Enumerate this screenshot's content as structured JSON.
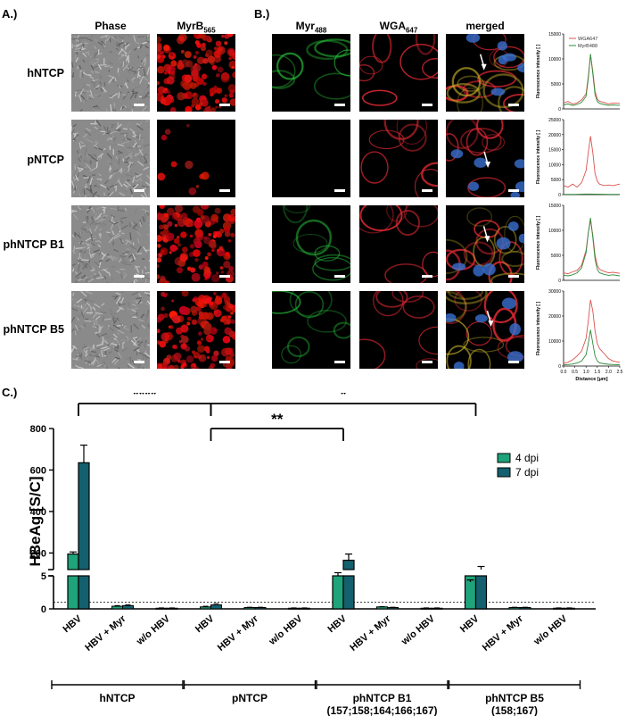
{
  "panel_a": {
    "letter": "A.)",
    "col_phase": "Phase",
    "col_myrb": "MyrB",
    "col_myrb_sub": "565",
    "rows": [
      "hNTCP",
      "pNTCP",
      "phNTCP B1",
      "phNTCP B5"
    ]
  },
  "panel_b": {
    "letter": "B.)",
    "col_myr": "Myr",
    "col_myr_sub": "488",
    "col_wga": "WGA",
    "col_wga_sub": "647",
    "col_merged": "merged",
    "legend_wga": "WGA647",
    "legend_myrb": "MyrB488",
    "profile_ylabel": "Fluorescence intensity [ ]",
    "profile_xlabel": "Distance [µm]",
    "profile_xticks": [
      "0.0",
      "0.5",
      "1.0",
      "1.5",
      "2.0",
      "2.5"
    ],
    "profile_yticks": [
      [
        "0",
        "5000",
        "10000",
        "15000"
      ],
      [
        "0",
        "5000",
        "10000",
        "15000",
        "20000",
        "25000"
      ],
      [
        "0",
        "5000",
        "10000",
        "15000"
      ],
      [
        "0",
        "10000",
        "20000",
        "30000"
      ]
    ]
  },
  "panel_c": {
    "letter": "C.)",
    "ylabel": "HBeAg [S/C]",
    "yticks_top": [
      "800",
      "600",
      "400",
      "200"
    ],
    "yticks_bottom": [
      "5",
      "0"
    ],
    "legend": [
      "4 dpi",
      "7 dpi"
    ],
    "sig_labels": [
      "****",
      "**",
      "*"
    ],
    "group_labels": [
      "hNTCP",
      "pNTCP",
      "phNTCP B1",
      "phNTCP  B5"
    ],
    "group_sublabels": [
      "",
      "",
      "(157;158;164;166;167)",
      "(158;167)"
    ],
    "categories": [
      "HBV",
      "HBV + Myr",
      "w/o HBV"
    ]
  },
  "chart_data": [
    {
      "type": "line",
      "title": "",
      "xlabel": "Distance [µm]",
      "ylabel": "Fluorescence intensity [ ]",
      "xlim": [
        0,
        2.5
      ],
      "ylim": [
        0,
        15000
      ],
      "series": [
        {
          "name": "WGA647",
          "color": "#d9534f",
          "x": [
            0,
            0.2,
            0.4,
            0.6,
            0.8,
            1.0,
            1.1,
            1.2,
            1.3,
            1.4,
            1.5,
            1.6,
            1.8,
            2.0,
            2.2,
            2.5
          ],
          "y": [
            1200,
            1500,
            1000,
            1200,
            1800,
            3000,
            6500,
            10800,
            7500,
            3500,
            2000,
            1500,
            1300,
            1000,
            1200,
            1100
          ]
        },
        {
          "name": "MyrB488",
          "color": "#2e8b3a",
          "x": [
            0,
            0.2,
            0.4,
            0.6,
            0.8,
            1.0,
            1.1,
            1.2,
            1.3,
            1.4,
            1.5,
            1.6,
            1.8,
            2.0,
            2.2,
            2.5
          ],
          "y": [
            800,
            1000,
            700,
            900,
            1300,
            2500,
            6000,
            11000,
            7000,
            2800,
            1500,
            1100,
            900,
            700,
            800,
            700
          ]
        }
      ]
    },
    {
      "type": "line",
      "xlabel": "Distance [µm]",
      "ylabel": "Fluorescence intensity [ ]",
      "xlim": [
        0,
        2.5
      ],
      "ylim": [
        0,
        25000
      ],
      "series": [
        {
          "name": "WGA647",
          "color": "#d9534f",
          "x": [
            0,
            0.2,
            0.4,
            0.6,
            0.8,
            1.0,
            1.1,
            1.2,
            1.3,
            1.4,
            1.5,
            1.6,
            1.8,
            2.0,
            2.2,
            2.5
          ],
          "y": [
            3000,
            2500,
            3500,
            2500,
            4000,
            8000,
            14000,
            19500,
            14000,
            7000,
            4500,
            3500,
            3000,
            3200,
            3000,
            3500
          ]
        },
        {
          "name": "MyrB488",
          "color": "#2e8b3a",
          "x": [
            0,
            0.5,
            1.0,
            1.5,
            2.0,
            2.5
          ],
          "y": [
            100,
            100,
            200,
            150,
            100,
            100
          ]
        }
      ]
    },
    {
      "type": "line",
      "xlabel": "Distance [µm]",
      "ylabel": "Fluorescence intensity [ ]",
      "xlim": [
        0,
        2.5
      ],
      "ylim": [
        0,
        15000
      ],
      "series": [
        {
          "name": "WGA647",
          "color": "#d9534f",
          "x": [
            0,
            0.2,
            0.4,
            0.6,
            0.8,
            1.0,
            1.1,
            1.2,
            1.3,
            1.4,
            1.5,
            1.6,
            1.8,
            2.0,
            2.2,
            2.5
          ],
          "y": [
            1500,
            1300,
            1700,
            2000,
            3000,
            6000,
            9500,
            12000,
            9000,
            5000,
            3000,
            2200,
            1800,
            1500,
            1600,
            1400
          ]
        },
        {
          "name": "MyrB488",
          "color": "#2e8b3a",
          "x": [
            0,
            0.2,
            0.4,
            0.6,
            0.8,
            1.0,
            1.1,
            1.2,
            1.3,
            1.4,
            1.5,
            1.6,
            1.8,
            2.0,
            2.2,
            2.5
          ],
          "y": [
            1000,
            900,
            1100,
            1500,
            2500,
            5500,
            9500,
            12500,
            8500,
            4200,
            2200,
            1500,
            1200,
            1000,
            1100,
            900
          ]
        }
      ]
    },
    {
      "type": "line",
      "xlabel": "Distance [µm]",
      "ylabel": "Fluorescence intensity [ ]",
      "xlim": [
        0,
        2.5
      ],
      "ylim": [
        0,
        30000
      ],
      "series": [
        {
          "name": "WGA647",
          "color": "#d9534f",
          "x": [
            0,
            0.2,
            0.4,
            0.6,
            0.8,
            1.0,
            1.1,
            1.2,
            1.3,
            1.4,
            1.5,
            1.6,
            1.8,
            2.0,
            2.2,
            2.5
          ],
          "y": [
            1000,
            1500,
            2500,
            4000,
            6000,
            11000,
            18000,
            26500,
            22000,
            14000,
            9000,
            7000,
            5000,
            3000,
            2000,
            1500
          ]
        },
        {
          "name": "MyrB488",
          "color": "#2e8b3a",
          "x": [
            0,
            0.2,
            0.4,
            0.6,
            0.8,
            1.0,
            1.1,
            1.2,
            1.3,
            1.4,
            1.5,
            1.6,
            1.8,
            2.0,
            2.2,
            2.5
          ],
          "y": [
            500,
            600,
            800,
            1200,
            2000,
            4500,
            9000,
            14500,
            9000,
            4000,
            2000,
            1300,
            900,
            700,
            600,
            500
          ]
        }
      ]
    },
    {
      "type": "bar",
      "ylabel": "HBeAg [S/C]",
      "axis_break": [
        5,
        120
      ],
      "ylim": [
        0,
        800
      ],
      "categories": [
        "hNTCP HBV",
        "hNTCP HBV + Myr",
        "hNTCP w/o HBV",
        "pNTCP HBV",
        "pNTCP HBV + Myr",
        "pNTCP w/o HBV",
        "phNTCP B1 HBV",
        "phNTCP B1 HBV + Myr",
        "phNTCP B1 w/o HBV",
        "phNTCP B5 HBV",
        "phNTCP B5 HBV + Myr",
        "phNTCP B5 w/o HBV"
      ],
      "series": [
        {
          "name": "4 dpi",
          "color": "#1fa37a",
          "values": [
            195,
            0.4,
            0.1,
            0.3,
            0.2,
            0.1,
            90,
            0.3,
            0.1,
            60,
            0.2,
            0.1
          ],
          "errors": [
            10,
            0.1,
            0.05,
            0.1,
            0.05,
            0.05,
            15,
            0.05,
            0.05,
            10,
            0.05,
            0.05
          ]
        },
        {
          "name": "7 dpi",
          "color": "#14606e",
          "values": [
            635,
            0.5,
            0.1,
            0.6,
            0.2,
            0.1,
            165,
            0.2,
            0.1,
            120,
            0.2,
            0.1
          ],
          "errors": [
            85,
            0.1,
            0.05,
            0.2,
            0.05,
            0.05,
            30,
            0.05,
            0.05,
            15,
            0.05,
            0.05
          ]
        }
      ],
      "cutoff": 1,
      "significance": [
        {
          "label": "****",
          "from": "hNTCP HBV",
          "to": "pNTCP HBV"
        },
        {
          "label": "**",
          "from": "pNTCP HBV",
          "to": "phNTCP B1 HBV"
        },
        {
          "label": "*",
          "from": "pNTCP HBV",
          "to": "phNTCP B5 HBV"
        }
      ],
      "legend_position": "top-right"
    }
  ]
}
